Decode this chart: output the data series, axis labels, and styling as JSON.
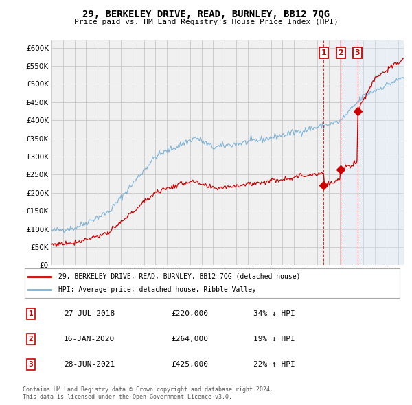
{
  "title": "29, BERKELEY DRIVE, READ, BURNLEY, BB12 7QG",
  "subtitle": "Price paid vs. HM Land Registry's House Price Index (HPI)",
  "ylim": [
    0,
    620000
  ],
  "yticks": [
    0,
    50000,
    100000,
    150000,
    200000,
    250000,
    300000,
    350000,
    400000,
    450000,
    500000,
    550000,
    600000
  ],
  "house_color": "#cc0000",
  "hpi_color": "#7ab0d4",
  "grid_color": "#cccccc",
  "transactions": [
    {
      "label": "1",
      "date": "27-JUL-2018",
      "price": 220000,
      "pct": "34%",
      "dir": "↓",
      "year": 2018.56
    },
    {
      "label": "2",
      "date": "16-JAN-2020",
      "price": 264000,
      "pct": "19%",
      "dir": "↓",
      "year": 2020.04
    },
    {
      "label": "3",
      "date": "28-JUN-2021",
      "price": 425000,
      "pct": "22%",
      "dir": "↑",
      "year": 2021.49
    }
  ],
  "legend_house": "29, BERKELEY DRIVE, READ, BURNLEY, BB12 7QG (detached house)",
  "legend_hpi": "HPI: Average price, detached house, Ribble Valley",
  "footer1": "Contains HM Land Registry data © Crown copyright and database right 2024.",
  "footer2": "This data is licensed under the Open Government Licence v3.0.",
  "background_color": "#ffffff",
  "plot_bg_color": "#f0f0f0",
  "shade_color": "#ddeeff"
}
